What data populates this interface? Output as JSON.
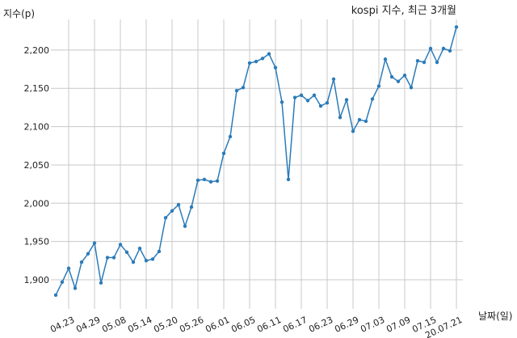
{
  "chart_data": {
    "type": "line",
    "title": "kospi 지수, 최근 3개월",
    "ylabel": "지수(p)",
    "xlabel": "날짜(일)",
    "grid": true,
    "ylim": [
      1862,
      2240
    ],
    "yticks": [
      1900,
      1950,
      2000,
      2050,
      2100,
      2150,
      2200
    ],
    "ytick_labels": [
      "1,900",
      "1,950",
      "2,000",
      "2,050",
      "2,100",
      "2,150",
      "2,200"
    ],
    "xtick_labels": [
      "04.23",
      "04.29",
      "05.08",
      "05.14",
      "05.20",
      "05.26",
      "06.01",
      "06.05",
      "06.11",
      "06.17",
      "06.23",
      "06.29",
      "07.03",
      "07.09",
      "07.15",
      "20.07.21"
    ],
    "xtick_indices": [
      2,
      6,
      10,
      14,
      18,
      22,
      26,
      30,
      34,
      38,
      42,
      46,
      50,
      54,
      58,
      62
    ],
    "series": [
      {
        "values": [
          1880,
          1897,
          1915,
          1889,
          1923,
          1934,
          1948,
          1896,
          1929,
          1929,
          1946,
          1936,
          1923,
          1941,
          1925,
          1927,
          1937,
          1981,
          1990,
          1998,
          1970,
          1995,
          2030,
          2031,
          2028,
          2029,
          2065,
          2087,
          2147,
          2151,
          2183,
          2185,
          2189,
          2195,
          2177,
          2132,
          2031,
          2138,
          2141,
          2134,
          2141,
          2127,
          2131,
          2162,
          2112,
          2135,
          2094,
          2109,
          2107,
          2136,
          2153,
          2188,
          2165,
          2159,
          2167,
          2151,
          2186,
          2184,
          2202,
          2184,
          2202,
          2199,
          2230
        ]
      }
    ]
  }
}
